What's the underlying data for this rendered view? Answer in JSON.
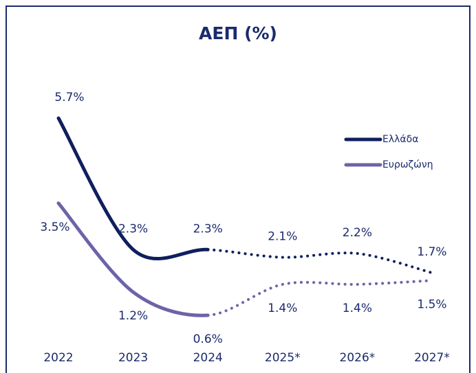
{
  "chart_data": {
    "type": "line",
    "title": "ΑΕΠ (%)",
    "categories": [
      "2022",
      "2023",
      "2024",
      "2025*",
      "2026*",
      "2027*"
    ],
    "series": [
      {
        "name": "Ελλάδα",
        "color": "#0f1f5e",
        "values": [
          5.7,
          2.3,
          2.3,
          2.1,
          2.2,
          1.7
        ],
        "value_labels": [
          "5.7%",
          "2.3%",
          "2.3%",
          "2.1%",
          "2.2%",
          "1.7%"
        ]
      },
      {
        "name": "Ευρωζώνη",
        "color": "#6c64a8",
        "values": [
          3.5,
          1.2,
          0.6,
          1.4,
          1.4,
          1.5
        ],
        "value_labels": [
          "3.5%",
          "1.2%",
          "0.6%",
          "1.4%",
          "1.4%",
          "1.5%"
        ]
      }
    ],
    "legend": "right"
  }
}
